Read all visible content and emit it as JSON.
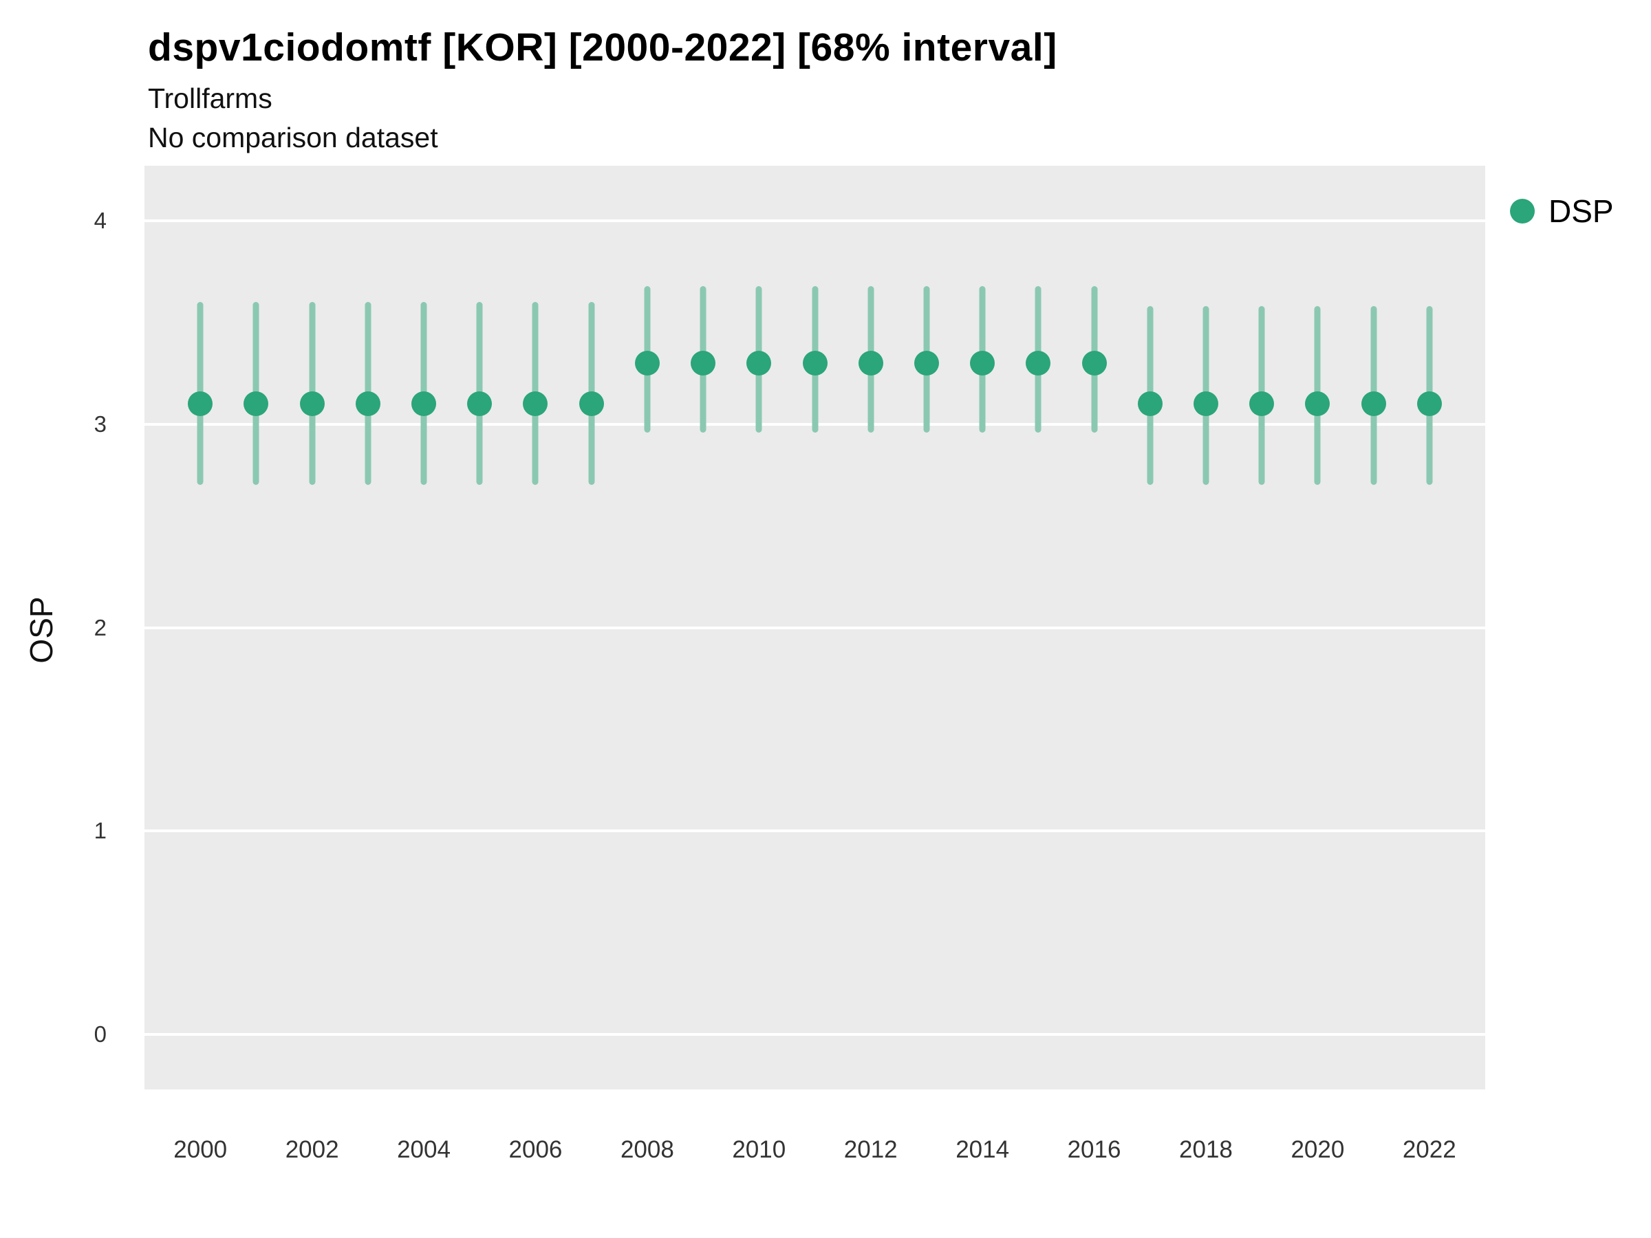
{
  "header": {
    "title": "dspv1ciodomtf [KOR] [2000-2022] [68% interval]",
    "subtitle1": "Trollfarms",
    "subtitle2": "No comparison dataset"
  },
  "legend": {
    "position": "right",
    "items": [
      {
        "label": "DSP",
        "marker": "circle-icon",
        "color": "#2BA57A"
      }
    ]
  },
  "chart_data": {
    "type": "scatter",
    "title": "dspv1ciodomtf [KOR] [2000-2022] [68% interval]",
    "subtitle": "Trollfarms",
    "note": "No comparison dataset",
    "interval": "68%",
    "xlabel": "",
    "ylabel": "OSP",
    "grid": true,
    "legend_position": "right",
    "x": [
      2000,
      2001,
      2002,
      2003,
      2004,
      2005,
      2006,
      2007,
      2008,
      2009,
      2010,
      2011,
      2012,
      2013,
      2014,
      2015,
      2016,
      2017,
      2018,
      2019,
      2020,
      2021,
      2022
    ],
    "series": [
      {
        "name": "DSP",
        "values": [
          3.1,
          3.1,
          3.1,
          3.1,
          3.1,
          3.1,
          3.1,
          3.1,
          3.3,
          3.3,
          3.3,
          3.3,
          3.3,
          3.3,
          3.3,
          3.3,
          3.3,
          3.1,
          3.1,
          3.1,
          3.1,
          3.1,
          3.1
        ],
        "lower": [
          2.7,
          2.7,
          2.7,
          2.7,
          2.7,
          2.7,
          2.7,
          2.7,
          2.96,
          2.96,
          2.96,
          2.96,
          2.96,
          2.96,
          2.96,
          2.96,
          2.96,
          2.7,
          2.7,
          2.7,
          2.7,
          2.7,
          2.7
        ],
        "upper": [
          3.6,
          3.6,
          3.6,
          3.6,
          3.6,
          3.6,
          3.6,
          3.6,
          3.68,
          3.68,
          3.68,
          3.68,
          3.68,
          3.68,
          3.68,
          3.68,
          3.68,
          3.58,
          3.58,
          3.58,
          3.58,
          3.58,
          3.58
        ]
      }
    ],
    "xlim": [
      1999,
      2023
    ],
    "ylim": [
      -0.27,
      4.27
    ],
    "xticks": [
      2000,
      2002,
      2004,
      2006,
      2008,
      2010,
      2012,
      2014,
      2016,
      2018,
      2020,
      2022
    ],
    "yticks": [
      0,
      1,
      2,
      3,
      4
    ],
    "colors": {
      "point": "#2BA57A",
      "interval": "#8BC8B2",
      "plot_bg": "#EBEBEB",
      "grid": "#FFFFFF",
      "title_text": "#000000",
      "tick_text": "#333333"
    }
  }
}
